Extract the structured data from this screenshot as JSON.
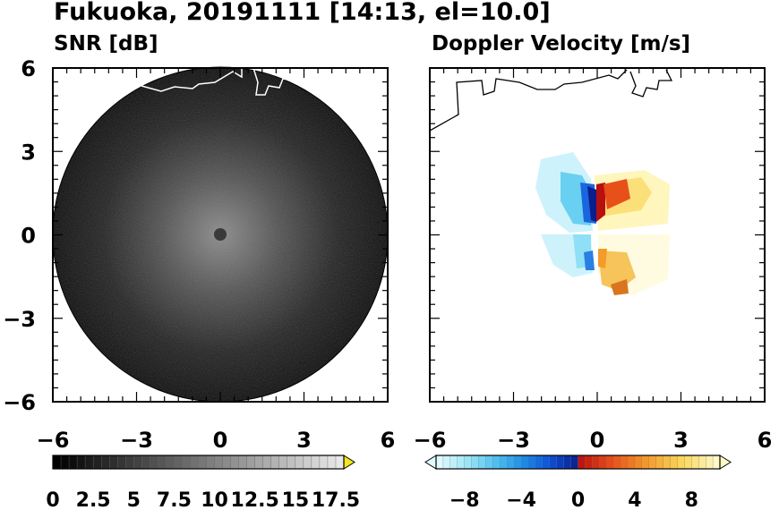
{
  "title": "Fukuoka, 20191111 [14:13, el=10.0]",
  "chart_data": [
    {
      "type": "heatmap",
      "name": "snr-panel",
      "title": "SNR [dB]",
      "xlim": [
        -6,
        6
      ],
      "ylim": [
        -6,
        6
      ],
      "x_ticks": [
        "−6",
        "−3",
        "0",
        "3",
        "6"
      ],
      "y_ticks": [
        "6",
        "3",
        "0",
        "−3",
        "−6"
      ],
      "scan_radius": 6,
      "colorbar": {
        "range": [
          0,
          18
        ],
        "ticks": [
          "0",
          "2.5",
          "5",
          "7.5",
          "10",
          "12.5",
          "15",
          "17.5"
        ],
        "tick_values": [
          0,
          2.5,
          5,
          7.5,
          10,
          12.5,
          15,
          17.5
        ],
        "extend": "max",
        "extend_color": "#f5e51b",
        "colors": [
          "#000000",
          "#ffffff"
        ]
      },
      "coastline_color": "#ffffff"
    },
    {
      "type": "heatmap",
      "name": "velocity-panel",
      "title": "Doppler Velocity [m/s]",
      "xlim": [
        -6,
        6
      ],
      "ylim": [
        -6,
        6
      ],
      "x_ticks": [
        "−6",
        "−3",
        "0",
        "3",
        "6"
      ],
      "y_ticks": [],
      "colorbar": {
        "range": [
          -10,
          10
        ],
        "ticks": [
          "−8",
          "−4",
          "0",
          "4",
          "8"
        ],
        "tick_values": [
          -8,
          -4,
          0,
          4,
          8
        ],
        "extend": "both",
        "colors": [
          "#e0fafe",
          "#9ee6f7",
          "#52c2f0",
          "#1e8ee6",
          "#0d4fd6",
          "#0a1f8a",
          "#b80f0f",
          "#e8501a",
          "#f49b2c",
          "#f9d75a",
          "#fff8c6"
        ]
      },
      "coastline_color": "#000000"
    }
  ]
}
